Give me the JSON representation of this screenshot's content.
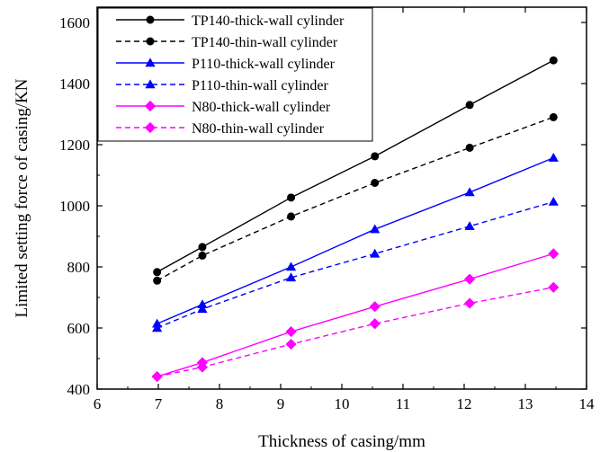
{
  "chart_data": {
    "type": "line",
    "title": "",
    "xlabel": "Thickness of casing/mm",
    "ylabel": "Limited setting force of casing/KN",
    "xlim": [
      6,
      14
    ],
    "ylim": [
      400,
      1650
    ],
    "xticks": [
      6,
      7,
      8,
      9,
      10,
      11,
      12,
      13,
      14
    ],
    "yticks": [
      400,
      600,
      800,
      1000,
      1200,
      1400,
      1600
    ],
    "grid": false,
    "legend_position": "top-left",
    "x": [
      6.98,
      7.72,
      9.17,
      10.54,
      12.09,
      13.46
    ],
    "series": [
      {
        "name": "TP140-thick-wall cylinder",
        "color": "#000000",
        "marker": "circle",
        "dash": "solid",
        "values": [
          783,
          865,
          1027,
          1162,
          1330,
          1476
        ]
      },
      {
        "name": "TP140-thin-wall cylinder",
        "color": "#000000",
        "marker": "circle",
        "dash": "dashed",
        "values": [
          755,
          837,
          965,
          1075,
          1190,
          1290
        ]
      },
      {
        "name": "P110-thick-wall cylinder",
        "color": "#0000ff",
        "marker": "triangle",
        "dash": "solid",
        "values": [
          614,
          677,
          800,
          923,
          1044,
          1157
        ]
      },
      {
        "name": "P110-thin-wall cylinder",
        "color": "#0000ff",
        "marker": "triangle",
        "dash": "dashed",
        "values": [
          600,
          662,
          765,
          843,
          933,
          1013
        ]
      },
      {
        "name": "N80-thick-wall cylinder",
        "color": "#ff00ff",
        "marker": "diamond",
        "dash": "solid",
        "values": [
          441,
          487,
          588,
          670,
          760,
          843
        ]
      },
      {
        "name": "N80-thin-wall cylinder",
        "color": "#ff00ff",
        "marker": "diamond",
        "dash": "dashed",
        "values": [
          441,
          472,
          547,
          614,
          681,
          733
        ]
      }
    ]
  }
}
